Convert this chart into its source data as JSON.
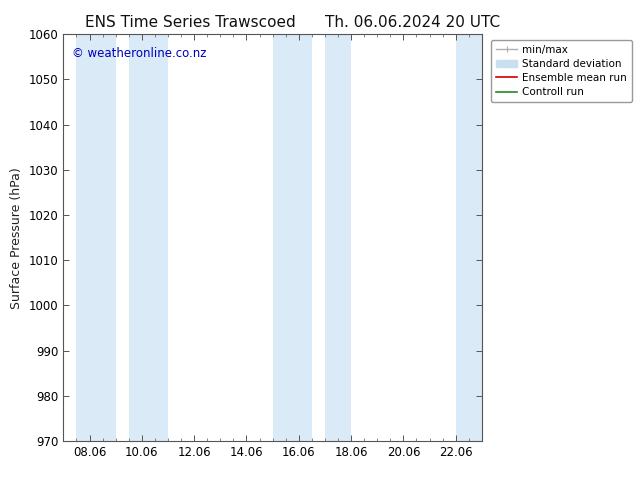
{
  "title_left": "ENS Time Series Trawscoed",
  "title_right": "Th. 06.06.2024 20 UTC",
  "ylabel": "Surface Pressure (hPa)",
  "watermark": "© weatheronline.co.nz",
  "ylim": [
    970,
    1060
  ],
  "yticks": [
    970,
    980,
    990,
    1000,
    1010,
    1020,
    1030,
    1040,
    1050,
    1060
  ],
  "xtick_labels": [
    "08.06",
    "10.06",
    "12.06",
    "14.06",
    "16.06",
    "18.06",
    "20.06",
    "22.06"
  ],
  "xtick_positions": [
    2,
    6,
    10,
    14,
    18,
    22,
    26,
    30
  ],
  "xmin": 0,
  "xmax": 32,
  "shaded_bands": [
    {
      "xstart": 1,
      "xend": 4
    },
    {
      "xstart": 5,
      "xend": 8
    },
    {
      "xstart": 16,
      "xend": 19
    },
    {
      "xstart": 20,
      "xend": 22
    },
    {
      "xstart": 30,
      "xend": 32
    }
  ],
  "band_color": "#daeaf7",
  "bg_color": "#ffffff",
  "legend_items": [
    {
      "label": "min/max",
      "color": "#b0b0b0",
      "lw": 1.0,
      "type": "errorbar"
    },
    {
      "label": "Standard deviation",
      "color": "#c8dff0",
      "lw": 5,
      "type": "band"
    },
    {
      "label": "Ensemble mean run",
      "color": "#cc0000",
      "lw": 1.2,
      "type": "line"
    },
    {
      "label": "Controll run",
      "color": "#228B22",
      "lw": 1.2,
      "type": "line"
    }
  ],
  "title_fontsize": 11,
  "axis_fontsize": 9,
  "tick_fontsize": 8.5,
  "watermark_color": "#0000bb",
  "watermark_fontsize": 8.5,
  "legend_fontsize": 7.5
}
